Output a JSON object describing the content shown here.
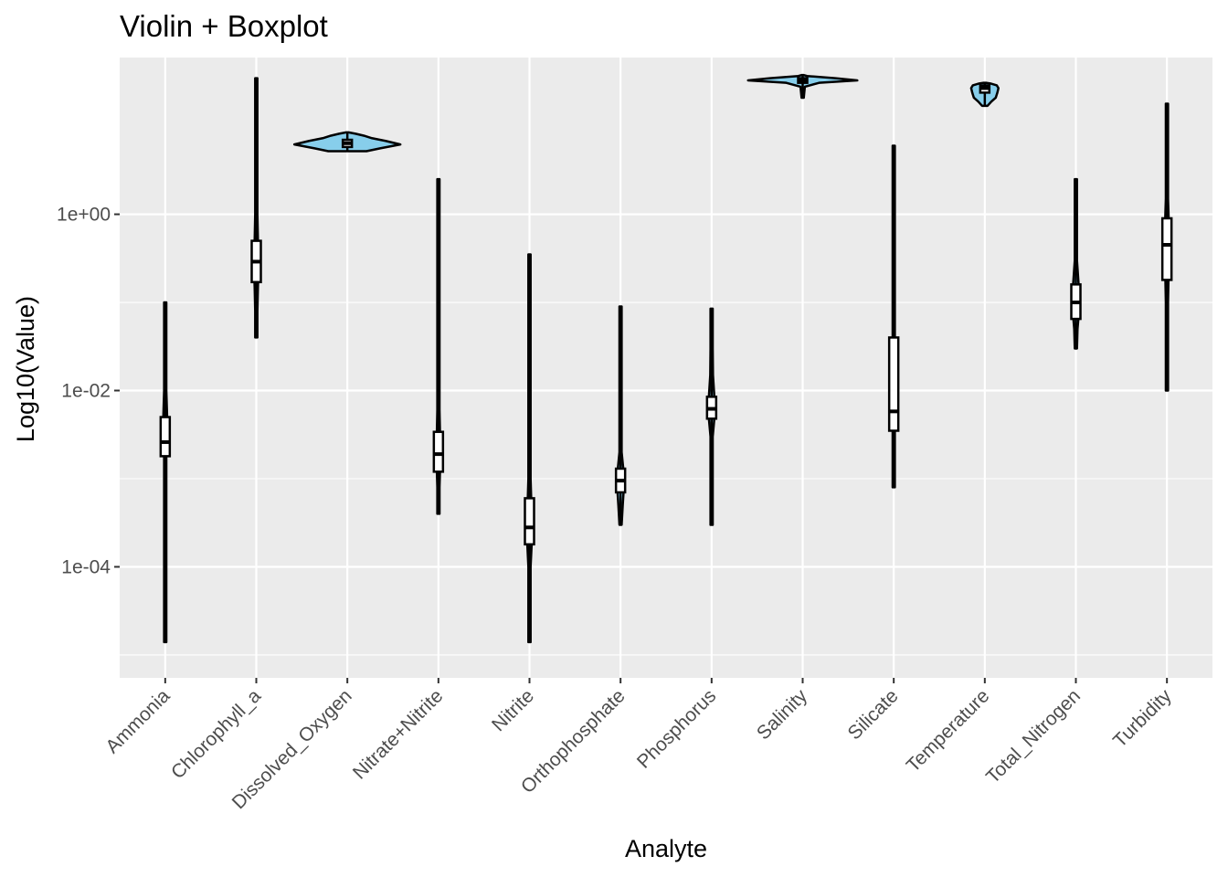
{
  "chart_data": {
    "type": "violin",
    "title": "Violin + Boxplot",
    "xlabel": "Analyte",
    "ylabel": "Log10(Value)",
    "y_scale": "log10",
    "ylim": [
      5.5e-06,
      60
    ],
    "y_ticks": [
      {
        "value": 1,
        "label": "1e+00"
      },
      {
        "value": 0.01,
        "label": "1e-02"
      },
      {
        "value": 0.0001,
        "label": "1e-04"
      }
    ],
    "minor_y_ticks": [
      100,
      0.1,
      0.001,
      1e-05
    ],
    "grid": true,
    "categories": [
      "Ammonia",
      "Chlorophyll_a",
      "Dissolved_Oxygen",
      "Nitrate+Nitrite",
      "Nitrite",
      "Orthophosphate",
      "Phosphorus",
      "Salinity",
      "Silicate",
      "Temperature",
      "Total_Nitrogen",
      "Turbidity"
    ],
    "colors": {
      "panel_background": "#ebebeb",
      "grid_major": "#ffffff",
      "violin_fill": "#87ceeb",
      "violin_stroke": "#000000",
      "box_fill": "#ffffff",
      "box_stroke": "#000000"
    },
    "violins": [
      {
        "name": "Ammonia",
        "min": 1.4e-05,
        "max": 0.1,
        "q1": 0.0018,
        "median": 0.0026,
        "q3": 0.005,
        "profile": [
          [
            1.4e-05,
            0
          ],
          [
            0.0004,
            0.001
          ],
          [
            0.0012,
            0.003
          ],
          [
            0.0018,
            0.01
          ],
          [
            0.0026,
            0.03
          ],
          [
            0.0035,
            0.04
          ],
          [
            0.005,
            0.035
          ],
          [
            0.01,
            0.015
          ],
          [
            0.02,
            0.004
          ],
          [
            0.1,
            0.001
          ]
        ]
      },
      {
        "name": "Chlorophyll_a",
        "min": 0.04,
        "max": 35,
        "q1": 0.17,
        "median": 0.29,
        "q3": 0.5,
        "profile": [
          [
            0.04,
            0.003
          ],
          [
            0.08,
            0.01
          ],
          [
            0.15,
            0.03
          ],
          [
            0.29,
            0.045
          ],
          [
            0.5,
            0.03
          ],
          [
            1,
            0.01
          ],
          [
            2,
            0.005
          ],
          [
            8,
            0.002
          ],
          [
            35,
            0.001
          ]
        ]
      },
      {
        "name": "Dissolved_Oxygen",
        "min": 5.2,
        "max": 8.5,
        "q1": 5.8,
        "median": 6.4,
        "q3": 7,
        "profile": [
          [
            5.2,
            0.35
          ],
          [
            5.6,
            0.6
          ],
          [
            6.2,
            0.97
          ],
          [
            6.8,
            0.7
          ],
          [
            7.3,
            0.45
          ],
          [
            7.8,
            0.3
          ],
          [
            8.2,
            0.15
          ],
          [
            8.5,
            0.02
          ]
        ]
      },
      {
        "name": "Nitrate+Nitrite",
        "min": 0.0004,
        "max": 2.5,
        "q1": 0.0012,
        "median": 0.0019,
        "q3": 0.0034,
        "profile": [
          [
            0.0004,
            0.002
          ],
          [
            0.0008,
            0.01
          ],
          [
            0.0013,
            0.03
          ],
          [
            0.0019,
            0.045
          ],
          [
            0.003,
            0.03
          ],
          [
            0.006,
            0.012
          ],
          [
            0.015,
            0.004
          ],
          [
            0.1,
            0.002
          ],
          [
            2.5,
            0.001
          ]
        ]
      },
      {
        "name": "Nitrite",
        "min": 1.4e-05,
        "max": 0.35,
        "q1": 0.00018,
        "median": 0.00028,
        "q3": 0.0006,
        "profile": [
          [
            1.4e-05,
            0.001
          ],
          [
            4e-05,
            0.003
          ],
          [
            0.0001,
            0.02
          ],
          [
            0.00018,
            0.04
          ],
          [
            0.00028,
            0.05
          ],
          [
            0.0005,
            0.035
          ],
          [
            0.001,
            0.01
          ],
          [
            0.004,
            0.003
          ],
          [
            0.05,
            0.001
          ],
          [
            0.35,
            0.001
          ]
        ]
      },
      {
        "name": "Orthophosphate",
        "min": 0.0003,
        "max": 0.09,
        "q1": 0.0007,
        "median": 0.00095,
        "q3": 0.0013,
        "profile": [
          [
            0.0003,
            0.003
          ],
          [
            0.0005,
            0.04
          ],
          [
            0.0007,
            0.055
          ],
          [
            0.00095,
            0.065
          ],
          [
            0.0013,
            0.05
          ],
          [
            0.002,
            0.02
          ],
          [
            0.005,
            0.006
          ],
          [
            0.02,
            0.002
          ],
          [
            0.09,
            0.001
          ]
        ]
      },
      {
        "name": "Phosphorus",
        "min": 0.0003,
        "max": 0.085,
        "q1": 0.0048,
        "median": 0.0062,
        "q3": 0.0085,
        "profile": [
          [
            0.0003,
            0.001
          ],
          [
            0.001,
            0.004
          ],
          [
            0.003,
            0.02
          ],
          [
            0.0048,
            0.05
          ],
          [
            0.0062,
            0.065
          ],
          [
            0.0085,
            0.05
          ],
          [
            0.015,
            0.025
          ],
          [
            0.03,
            0.008
          ],
          [
            0.085,
            0.001
          ]
        ]
      },
      {
        "name": "Salinity",
        "min": 21,
        "max": 38,
        "q1": 31,
        "median": 33,
        "q3": 35,
        "profile": [
          [
            21,
            0.001
          ],
          [
            28,
            0.04
          ],
          [
            31,
            0.3
          ],
          [
            33,
            1
          ],
          [
            35,
            0.6
          ],
          [
            37,
            0.08
          ],
          [
            38,
            0.001
          ]
        ]
      },
      {
        "name": "Silicate",
        "min": 0.0008,
        "max": 6,
        "q1": 0.0035,
        "median": 0.0058,
        "q3": 0.04,
        "profile": [
          [
            0.0008,
            0.003
          ],
          [
            0.002,
            0.006
          ],
          [
            0.0035,
            0.015
          ],
          [
            0.0058,
            0.02
          ],
          [
            0.01,
            0.018
          ],
          [
            0.04,
            0.012
          ],
          [
            0.2,
            0.006
          ],
          [
            1.5,
            0.003
          ],
          [
            6,
            0.001
          ]
        ]
      },
      {
        "name": "Temperature",
        "min": 17,
        "max": 31,
        "q1": 24,
        "median": 27,
        "q3": 29,
        "profile": [
          [
            17,
            0.05
          ],
          [
            19,
            0.12
          ],
          [
            21,
            0.2
          ],
          [
            24,
            0.23
          ],
          [
            27,
            0.25
          ],
          [
            29,
            0.22
          ],
          [
            30.5,
            0.1
          ],
          [
            31,
            0.02
          ]
        ]
      },
      {
        "name": "Total_Nitrogen",
        "min": 0.03,
        "max": 2.5,
        "q1": 0.065,
        "median": 0.1,
        "q3": 0.16,
        "profile": [
          [
            0.03,
            0.004
          ],
          [
            0.05,
            0.03
          ],
          [
            0.07,
            0.05
          ],
          [
            0.1,
            0.06
          ],
          [
            0.16,
            0.05
          ],
          [
            0.3,
            0.02
          ],
          [
            0.6,
            0.006
          ],
          [
            2.5,
            0.001
          ]
        ]
      },
      {
        "name": "Turbidity",
        "min": 0.01,
        "max": 18,
        "q1": 0.18,
        "median": 0.45,
        "q3": 0.9,
        "profile": [
          [
            0.01,
            0.002
          ],
          [
            0.02,
            0.004
          ],
          [
            0.1,
            0.015
          ],
          [
            0.3,
            0.035
          ],
          [
            0.6,
            0.04
          ],
          [
            1.5,
            0.02
          ],
          [
            5,
            0.006
          ],
          [
            18,
            0.001
          ]
        ]
      }
    ]
  }
}
